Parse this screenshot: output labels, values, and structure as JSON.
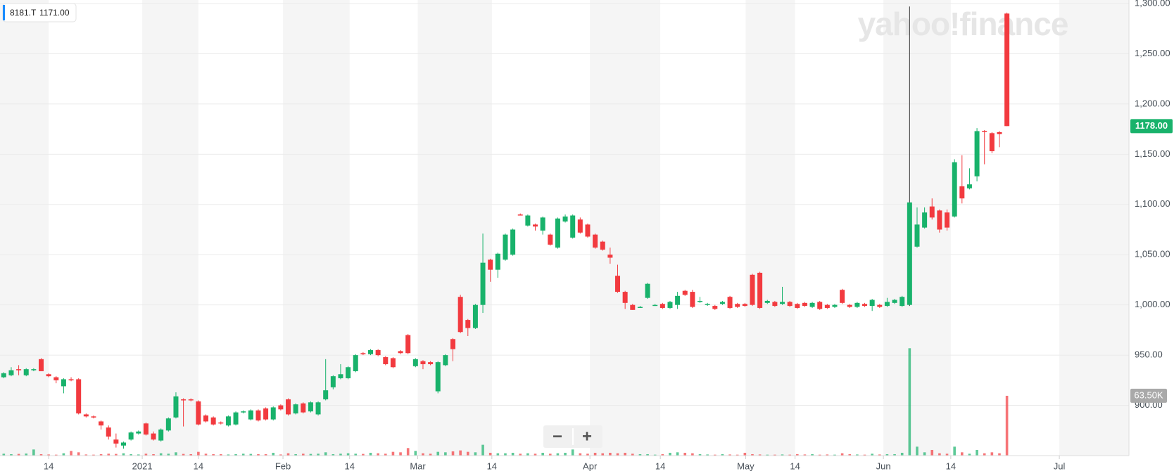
{
  "chart_data": {
    "type": "candlestick",
    "tooltip": {
      "symbol": "8181.T",
      "price": "1171.00"
    },
    "watermark": "yahoo!finance",
    "controls": [
      "−",
      "+"
    ],
    "up_color": "#18b26b",
    "down_color": "#f23a3f",
    "grid": true,
    "categories": [
      null,
      null,
      null,
      null,
      null,
      null,
      null,
      null,
      null,
      null,
      null,
      null,
      null,
      null,
      null,
      null,
      null,
      null,
      null,
      null,
      null,
      null,
      null,
      null,
      null,
      null,
      null,
      null,
      null,
      null,
      null,
      null,
      null,
      null,
      null,
      null,
      null,
      null,
      null,
      null,
      null,
      null,
      null,
      null,
      null,
      null,
      null,
      null,
      null,
      null,
      null,
      null,
      null,
      null,
      null,
      null,
      null,
      null,
      null,
      null,
      null,
      null,
      null,
      null,
      null,
      null,
      null,
      null,
      null,
      null,
      null,
      null,
      null,
      null,
      null,
      null,
      null,
      null,
      null,
      null,
      null,
      null,
      null,
      null,
      null,
      null,
      null,
      null,
      null,
      null,
      null,
      null,
      null,
      null,
      null,
      null,
      null,
      null,
      null,
      null,
      null,
      null,
      null,
      null,
      null,
      null,
      null,
      null,
      null,
      null,
      null,
      null,
      null,
      null,
      null,
      null,
      null,
      null,
      null,
      null,
      null,
      null,
      null,
      null,
      null,
      null,
      null,
      null,
      null,
      null,
      null,
      null,
      null,
      null,
      null
    ],
    "open": [
      928,
      930,
      936,
      930,
      935,
      946,
      931,
      928,
      919,
      926,
      926,
      891,
      889,
      884,
      878,
      866,
      860,
      866,
      872,
      882,
      872,
      865,
      875,
      888,
      906,
      906,
      904,
      890,
      888,
      883,
      880,
      881,
      893,
      886,
      895,
      897,
      886,
      900,
      906,
      892,
      902,
      894,
      891,
      906,
      918,
      927,
      927,
      934,
      952,
      951,
      955,
      948,
      947,
      954,
      970,
      939,
      944,
      943,
      914,
      940,
      966,
      1008,
      985,
      977,
      1000,
      1045,
      1035,
      1045,
      1050,
      1090,
      1079,
      1080,
      1074,
      1070,
      1057,
      1083,
      1067,
      1085,
      1080,
      1070,
      1063,
      1050,
      1029,
      1013,
      1000,
      998,
      1007,
      1000,
      1001,
      997,
      1000,
      1014,
      1013,
      1003,
      1000,
      999,
      1001,
      1008,
      1001,
      1001,
      1030,
      1032,
      1002,
      1003,
      1001,
      1003,
      1001,
      1002,
      998,
      1003,
      1000,
      998,
      1015,
      1000,
      998,
      1001,
      999,
      1000,
      999,
      1002,
      999,
      1000,
      1058,
      1077,
      1098,
      1094,
      1092,
      1088,
      1118,
      1116,
      1128,
      1173,
      1171,
      1172,
      1290
    ],
    "high": [
      933,
      938,
      940,
      937,
      937,
      947,
      932,
      929,
      927,
      928,
      927,
      892,
      890,
      885,
      880,
      872,
      864,
      874,
      875,
      883,
      874,
      877,
      888,
      913,
      907,
      907,
      905,
      891,
      889,
      884,
      890,
      894,
      895,
      896,
      896,
      898,
      899,
      901,
      907,
      902,
      903,
      904,
      904,
      946,
      930,
      941,
      939,
      951,
      953,
      956,
      956,
      949,
      948,
      955,
      971,
      947,
      945,
      944,
      944,
      951,
      967,
      1010,
      986,
      1001,
      1071,
      1046,
      1052,
      1071,
      1076,
      1091,
      1090,
      1081,
      1088,
      1071,
      1087,
      1090,
      1090,
      1087,
      1081,
      1071,
      1064,
      1057,
      1040,
      1014,
      1001,
      999,
      1022,
      1001,
      1002,
      1004,
      1013,
      1015,
      1015,
      1008,
      1002,
      1000,
      1004,
      1009,
      1002,
      1002,
      1031,
      1033,
      1005,
      1004,
      1018,
      1004,
      1002,
      1003,
      1003,
      1004,
      1001,
      1001,
      1016,
      1001,
      1003,
      1002,
      1006,
      1001,
      1007,
      1006,
      1009,
      1297,
      1097,
      1097,
      1106,
      1095,
      1095,
      1145,
      1149,
      1136,
      1176,
      1174,
      1172,
      1173,
      1291
    ],
    "low": [
      927,
      929,
      930,
      929,
      934,
      934,
      928,
      922,
      912,
      924,
      891,
      888,
      887,
      876,
      866,
      858,
      857,
      865,
      871,
      870,
      865,
      864,
      874,
      887,
      879,
      904,
      880,
      883,
      880,
      881,
      879,
      880,
      892,
      885,
      884,
      885,
      885,
      895,
      890,
      891,
      892,
      893,
      890,
      905,
      916,
      926,
      926,
      933,
      950,
      950,
      949,
      940,
      937,
      951,
      951,
      938,
      936,
      940,
      912,
      939,
      944,
      972,
      969,
      976,
      992,
      1023,
      1027,
      1044,
      1049,
      1089,
      1078,
      1074,
      1070,
      1059,
      1056,
      1082,
      1066,
      1071,
      1067,
      1056,
      1054,
      1041,
      1012,
      996,
      995,
      997,
      1006,
      999,
      996,
      996,
      996,
      1009,
      997,
      1002,
      999,
      995,
      1000,
      996,
      997,
      998,
      999,
      996,
      1001,
      998,
      1000,
      998,
      996,
      998,
      997,
      995,
      996,
      997,
      1001,
      997,
      997,
      998,
      994,
      997,
      998,
      1001,
      998,
      999,
      1057,
      1076,
      1085,
      1072,
      1074,
      1087,
      1101,
      1115,
      1123,
      1140,
      1151,
      1157,
      1178
    ],
    "close": [
      932,
      935,
      935,
      936,
      936,
      934,
      929,
      925,
      926,
      925,
      892,
      889,
      888,
      880,
      869,
      862,
      863,
      873,
      874,
      871,
      866,
      876,
      887,
      909,
      905,
      905,
      881,
      884,
      881,
      882,
      889,
      893,
      894,
      895,
      885,
      886,
      898,
      896,
      891,
      901,
      893,
      903,
      903,
      915,
      929,
      931,
      938,
      950,
      951,
      955,
      950,
      941,
      938,
      952,
      952,
      946,
      941,
      941,
      943,
      950,
      956,
      973,
      977,
      1000,
      1042,
      1035,
      1051,
      1070,
      1075,
      1089,
      1089,
      1078,
      1087,
      1060,
      1086,
      1088,
      1089,
      1072,
      1068,
      1057,
      1055,
      1047,
      1013,
      1002,
      995,
      998,
      1021,
      1000,
      997,
      1003,
      1009,
      1010,
      998,
      1004,
      1001,
      996,
      1003,
      997,
      998,
      999,
      1000,
      997,
      1004,
      999,
      1003,
      999,
      997,
      999,
      1002,
      996,
      997,
      1000,
      1002,
      998,
      1002,
      999,
      1005,
      998,
      1003,
      1005,
      1008,
      1102,
      1080,
      1092,
      1087,
      1075,
      1077,
      1142,
      1106,
      1120,
      1173,
      1172,
      1153,
      1170,
      1178
    ],
    "volume": [
      2000,
      1500,
      1800,
      2200,
      6500,
      1500,
      1200,
      1000,
      2500,
      5000,
      3500,
      1200,
      1000,
      1500,
      2000,
      1800,
      2500,
      1500,
      1200,
      2000,
      1500,
      2500,
      2000,
      3500,
      1800,
      1500,
      4000,
      2000,
      1500,
      1500,
      1200,
      1500,
      2000,
      1800,
      1500,
      1500,
      3000,
      1200,
      2500,
      1500,
      2000,
      1800,
      2000,
      3500,
      1500,
      2000,
      2500,
      2000,
      1800,
      3000,
      2500,
      2000,
      4000,
      3500,
      8000,
      5000,
      2500,
      2000,
      4000,
      3500,
      4500,
      5500,
      4000,
      3500,
      11500,
      3000,
      2500,
      2500,
      3000,
      2000,
      2500,
      2000,
      3000,
      2000,
      2500,
      3000,
      6500,
      2500,
      2000,
      3000,
      2500,
      3000,
      2500,
      3000,
      2000,
      1500,
      1500,
      1000,
      1500,
      3000,
      3500,
      3000,
      2500,
      1500,
      1200,
      1000,
      1500,
      1200,
      1000,
      3000,
      1500,
      1200,
      1000,
      1000,
      1200,
      1000,
      1500,
      1200,
      1500,
      1000,
      1200,
      1000,
      2500,
      1500,
      1200,
      1000,
      2000,
      1200,
      1500,
      1500,
      3000,
      114000,
      9500,
      3500,
      6000,
      2500,
      2000,
      9500,
      3500,
      2000,
      6000,
      2500,
      3500,
      2500,
      63500
    ],
    "xlim": [
      -0.5,
      150.3
    ],
    "xticks": [
      {
        "value": 6,
        "label": "14"
      },
      {
        "value": 18.5,
        "label": "2021"
      },
      {
        "value": 26,
        "label": "14"
      },
      {
        "value": 37.3,
        "label": "Feb"
      },
      {
        "value": 46.2,
        "label": "14"
      },
      {
        "value": 55.3,
        "label": "Mar"
      },
      {
        "value": 65.2,
        "label": "14"
      },
      {
        "value": 78.3,
        "label": "Apr"
      },
      {
        "value": 87.7,
        "label": "14"
      },
      {
        "value": 99.1,
        "label": "May"
      },
      {
        "value": 105.7,
        "label": "14"
      },
      {
        "value": 117.5,
        "label": "Jun"
      },
      {
        "value": 126.5,
        "label": "14"
      },
      {
        "value": 141,
        "label": "Jul"
      }
    ],
    "ylim": [
      850,
      1300
    ],
    "yticks": [
      {
        "value": 900,
        "label": "900.00"
      },
      {
        "value": 950,
        "label": "950.00"
      },
      {
        "value": 1000,
        "label": "1,000.00"
      },
      {
        "value": 1050,
        "label": "1,050.00"
      },
      {
        "value": 1100,
        "label": "1,100.00"
      },
      {
        "value": 1150,
        "label": "1,150.00"
      },
      {
        "value": 1200,
        "label": "1,200.00"
      },
      {
        "value": 1250,
        "label": "1,250.00"
      },
      {
        "value": 1300,
        "label": "1,300.00"
      }
    ],
    "volume_ylim": [
      0,
      480000
    ],
    "last_price": {
      "value": 1178,
      "label": "1178.00"
    },
    "last_volume": {
      "value": 63500,
      "label": "63.50K"
    }
  }
}
